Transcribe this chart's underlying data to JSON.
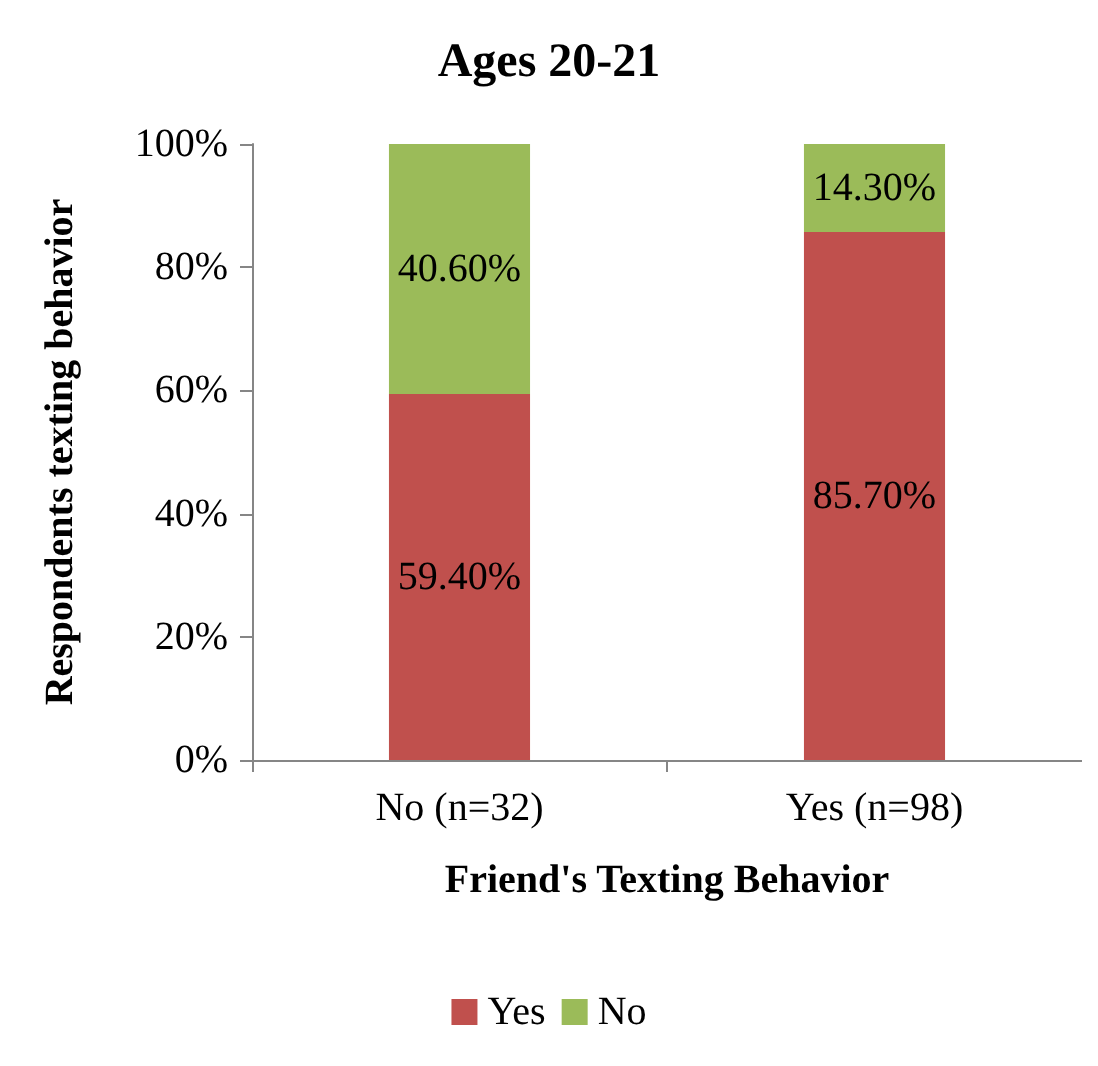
{
  "chart_data": {
    "type": "bar",
    "title": "Ages 20-21",
    "xlabel": "Friend's Texting Behavior",
    "ylabel": "Respondents texting behavior",
    "categories": [
      "No (n=32)",
      "Yes (n=98)"
    ],
    "stacked": true,
    "series": [
      {
        "name": "Yes",
        "color": "#c0504d",
        "values": [
          59.4,
          85.7
        ],
        "value_labels": [
          "59.40%",
          "85.70%"
        ]
      },
      {
        "name": "No",
        "color": "#9bbb59",
        "values": [
          40.6,
          14.3
        ],
        "value_labels": [
          "40.60%",
          "14.30%"
        ]
      }
    ],
    "ylim": [
      0,
      100
    ],
    "yticks": [
      {
        "value": 0,
        "label": "0%"
      },
      {
        "value": 20,
        "label": "20%"
      },
      {
        "value": 40,
        "label": "40%"
      },
      {
        "value": 60,
        "label": "60%"
      },
      {
        "value": 80,
        "label": "80%"
      },
      {
        "value": 100,
        "label": "100%"
      }
    ],
    "grid": false,
    "legend": "bottom"
  }
}
